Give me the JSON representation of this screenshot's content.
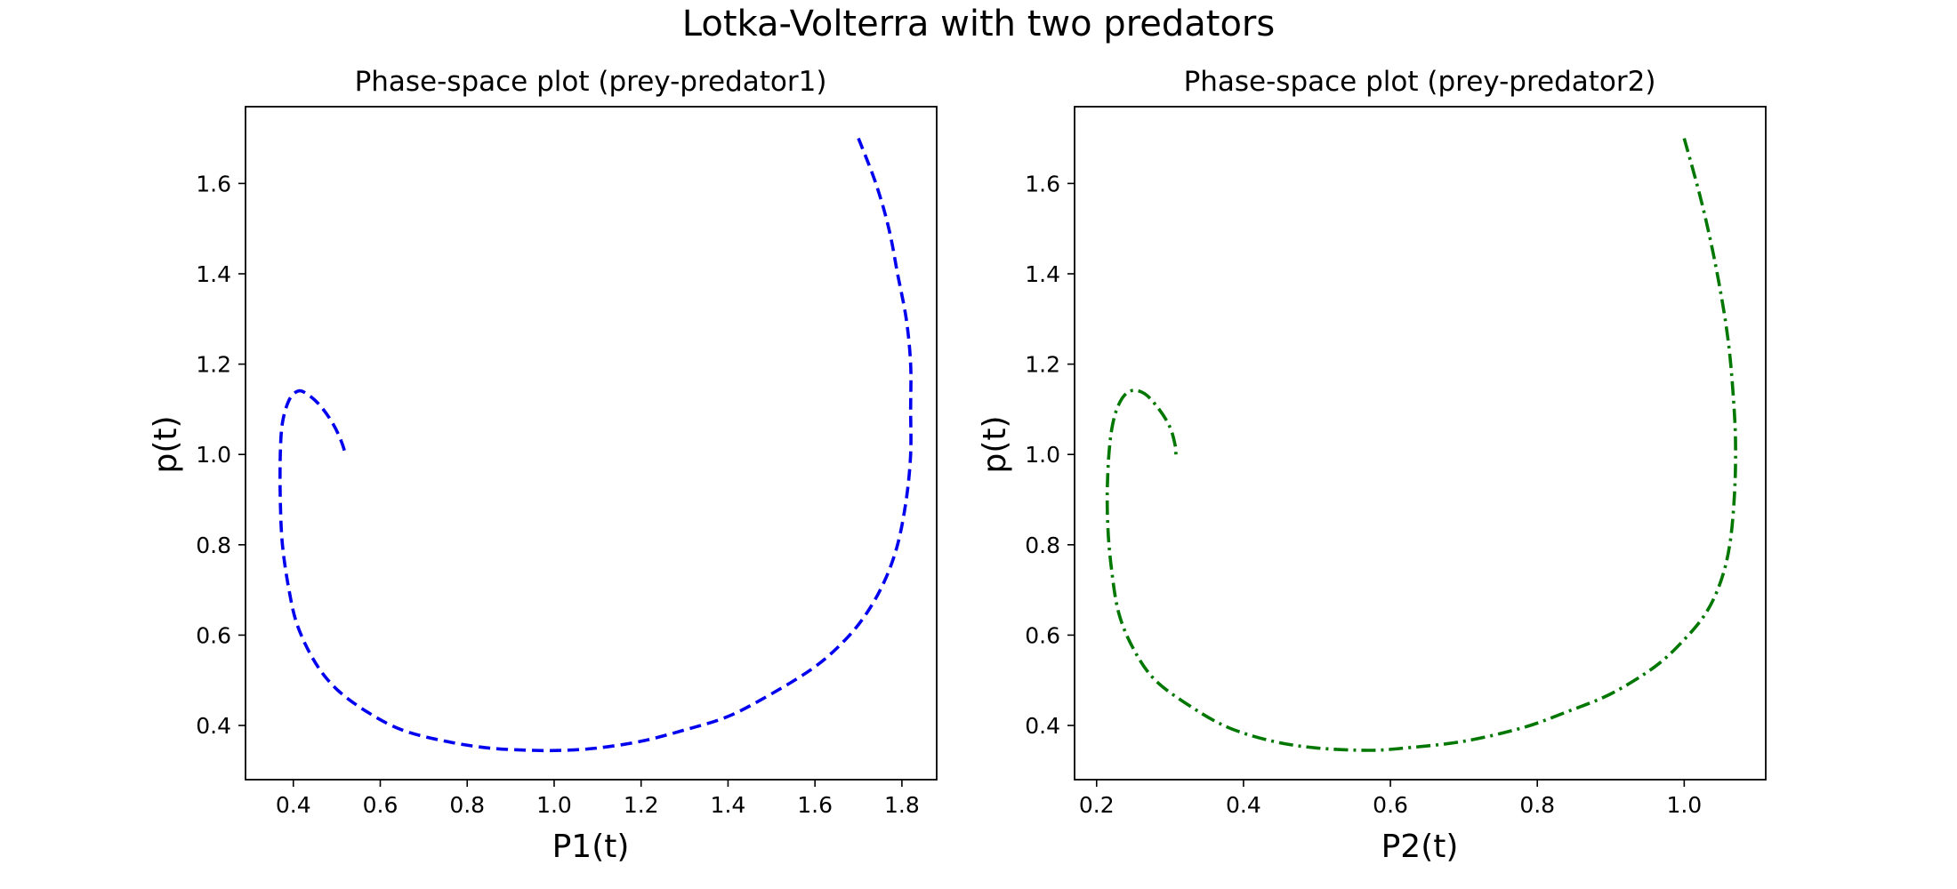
{
  "figure": {
    "suptitle": "Lotka-Volterra with two predators"
  },
  "chart_data": [
    {
      "type": "line",
      "title": "Phase-space plot (prey-predator1)",
      "xlabel": "P1(t)",
      "ylabel": "p(t)",
      "xlim": [
        0.29,
        1.88
      ],
      "ylim": [
        0.28,
        1.77
      ],
      "xticks": [
        "0.4",
        "0.6",
        "0.8",
        "1.0",
        "1.2",
        "1.4",
        "1.6",
        "1.8"
      ],
      "yticks": [
        "0.4",
        "0.6",
        "0.8",
        "1.0",
        "1.2",
        "1.4",
        "1.6"
      ],
      "grid": false,
      "series": [
        {
          "color": "#0000ee",
          "line_style": "dashed",
          "x": [
            1.7,
            1.74,
            1.77,
            1.79,
            1.81,
            1.82,
            1.82,
            1.82,
            1.81,
            1.79,
            1.76,
            1.72,
            1.67,
            1.6,
            1.5,
            1.4,
            1.3,
            1.2,
            1.1,
            1.02,
            0.95,
            0.85,
            0.75,
            0.65,
            0.57,
            0.5,
            0.45,
            0.41,
            0.39,
            0.375,
            0.37,
            0.37,
            0.375,
            0.39,
            0.41,
            0.43,
            0.46,
            0.49,
            0.51,
            0.52
          ],
          "y": [
            1.7,
            1.6,
            1.5,
            1.4,
            1.3,
            1.2,
            1.1,
            1.0,
            0.9,
            0.8,
            0.72,
            0.65,
            0.59,
            0.53,
            0.47,
            0.42,
            0.39,
            0.365,
            0.35,
            0.345,
            0.345,
            0.35,
            0.365,
            0.39,
            0.43,
            0.48,
            0.54,
            0.62,
            0.7,
            0.8,
            0.9,
            1.0,
            1.07,
            1.12,
            1.14,
            1.135,
            1.11,
            1.07,
            1.03,
            1.0
          ]
        }
      ]
    },
    {
      "type": "line",
      "title": "Phase-space plot (prey-predator2)",
      "xlabel": "P2(t)",
      "ylabel": "p(t)",
      "xlim": [
        0.17,
        1.111
      ],
      "ylim": [
        0.28,
        1.77
      ],
      "xticks": [
        "0.2",
        "0.4",
        "0.6",
        "0.8",
        "1.0"
      ],
      "yticks": [
        "0.4",
        "0.6",
        "0.8",
        "1.0",
        "1.2",
        "1.4",
        "1.6"
      ],
      "grid": false,
      "series": [
        {
          "color": "#007700",
          "line_style": "dashdot",
          "x": [
            1.0,
            1.025,
            1.045,
            1.06,
            1.068,
            1.07,
            1.068,
            1.062,
            1.05,
            1.03,
            1.0,
            0.96,
            0.9,
            0.84,
            0.78,
            0.7,
            0.62,
            0.57,
            0.5,
            0.44,
            0.38,
            0.33,
            0.28,
            0.25,
            0.23,
            0.22,
            0.215,
            0.215,
            0.22,
            0.23,
            0.245,
            0.265,
            0.285,
            0.3,
            0.307,
            0.308
          ],
          "y": [
            1.7,
            1.55,
            1.4,
            1.25,
            1.1,
            1.0,
            0.9,
            0.8,
            0.72,
            0.65,
            0.59,
            0.53,
            0.47,
            0.43,
            0.395,
            0.365,
            0.35,
            0.345,
            0.35,
            0.365,
            0.395,
            0.44,
            0.5,
            0.57,
            0.65,
            0.75,
            0.85,
            0.95,
            1.05,
            1.11,
            1.14,
            1.135,
            1.1,
            1.06,
            1.02,
            1.0
          ]
        }
      ]
    }
  ]
}
